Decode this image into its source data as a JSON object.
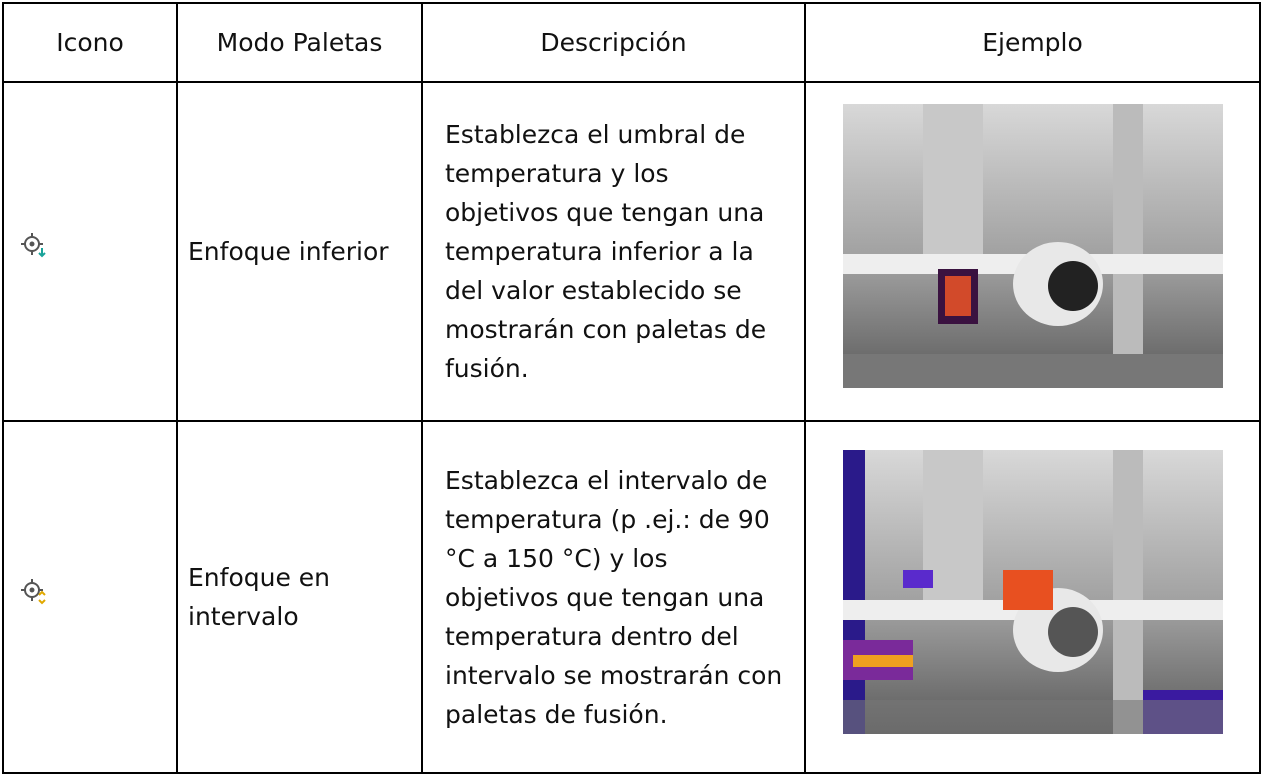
{
  "table": {
    "header": [
      "Icono",
      "Modo Paletas",
      "Descripción",
      "Ejemplo"
    ],
    "rows": [
      {
        "mode": "Enfoque inferior",
        "description": "Establezca el umbral de temperatura y los objetivos que tengan una temperatura inferior a la del valor establecido se mostrarán con paletas de fusión."
      },
      {
        "mode": "Enfoque en intervalo",
        "description": "Establezca el intervalo de temperatura (p .ej.: de 90 °C a 150 °C) y los objetivos que tengan una temperatura dentro del intervalo se mostrarán con paletas de fusión."
      }
    ]
  }
}
